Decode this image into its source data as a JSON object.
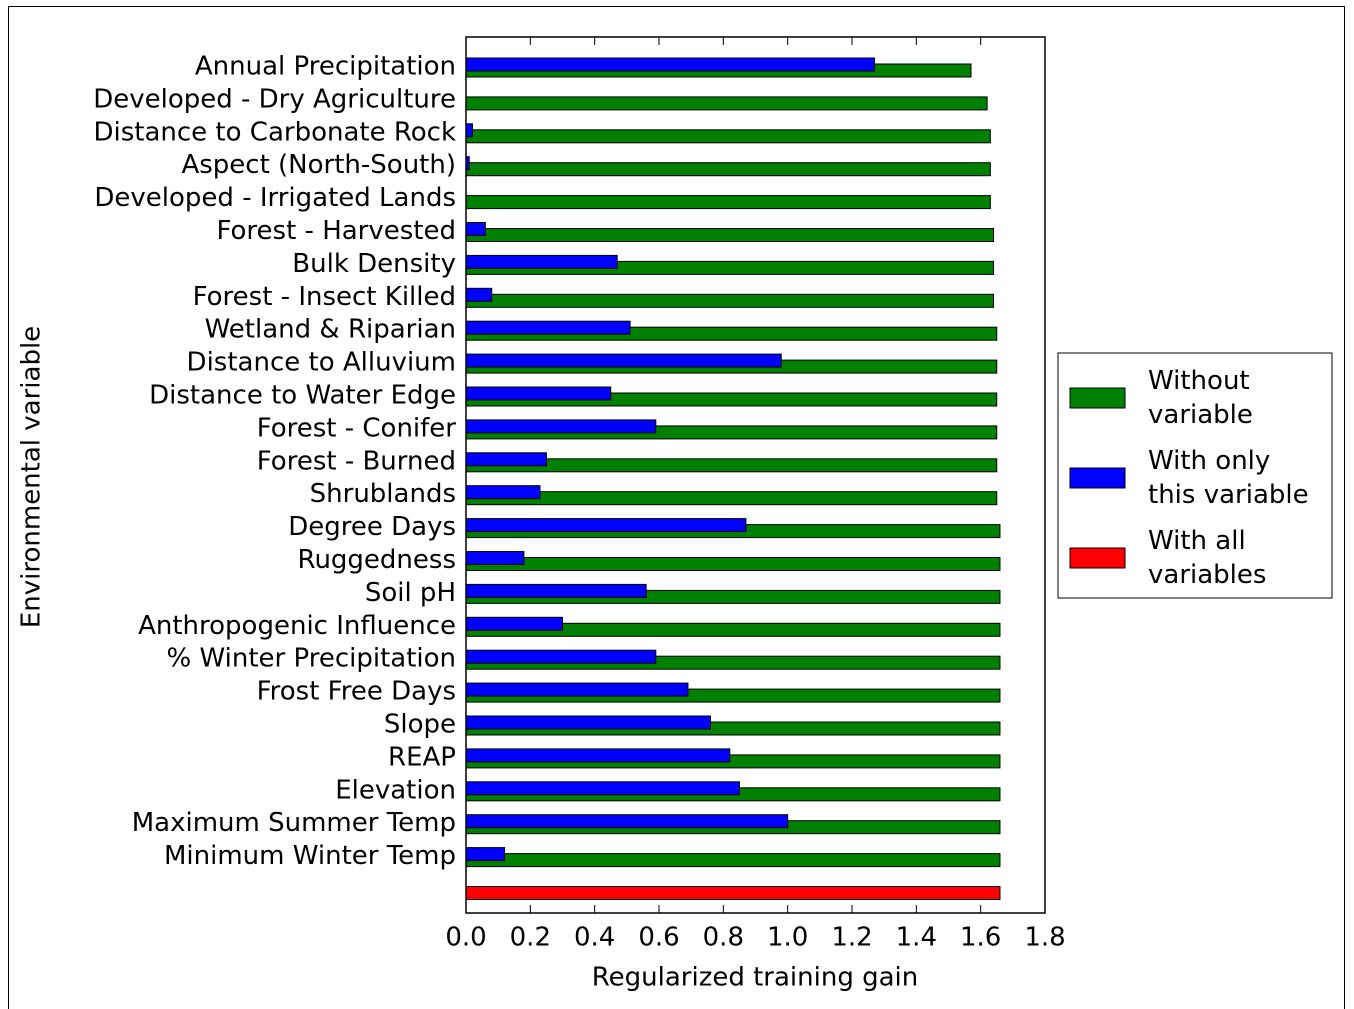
{
  "chart_data": {
    "type": "barh",
    "xlabel": "Regularized training gain",
    "ylabel": "Environmental variable",
    "categories": [
      "Annual Precipitation",
      "Developed - Dry Agriculture",
      "Distance to Carbonate Rock",
      "Aspect (North-South)",
      "Developed - Irrigated Lands",
      "Forest - Harvested",
      "Bulk Density",
      "Forest - Insect Killed",
      "Wetland & Riparian",
      "Distance to Alluvium",
      "Distance to Water Edge",
      "Forest - Conifer",
      "Forest - Burned",
      "Shrublands",
      "Degree Days",
      "Ruggedness",
      "Soil pH",
      "Anthropogenic Influence",
      "% Winter Precipitation",
      "Frost Free Days",
      "Slope",
      "REAP",
      "Elevation",
      "Maximum Summer Temp",
      "Minimum Winter Temp",
      null
    ],
    "series": [
      {
        "name": "Without variable",
        "color": "#008000",
        "values": [
          1.57,
          1.62,
          1.63,
          1.63,
          1.63,
          1.64,
          1.64,
          1.64,
          1.65,
          1.65,
          1.65,
          1.65,
          1.65,
          1.65,
          1.66,
          1.66,
          1.66,
          1.66,
          1.66,
          1.66,
          1.66,
          1.66,
          1.66,
          1.66,
          1.66,
          null
        ]
      },
      {
        "name": "With only this variable",
        "color": "#0000ff",
        "values": [
          1.27,
          0,
          0.02,
          0.01,
          0,
          0.06,
          0.47,
          0.08,
          0.51,
          0.98,
          0.45,
          0.59,
          0.25,
          0.23,
          0.87,
          0.18,
          0.56,
          0.3,
          0.59,
          0.69,
          0.76,
          0.82,
          0.85,
          1.0,
          0.12,
          null
        ]
      },
      {
        "name": "With all variables",
        "color": "#ff0000",
        "values": [
          null,
          null,
          null,
          null,
          null,
          null,
          null,
          null,
          null,
          null,
          null,
          null,
          null,
          null,
          null,
          null,
          null,
          null,
          null,
          null,
          null,
          null,
          null,
          null,
          null,
          1.66
        ]
      }
    ],
    "xlim": [
      0,
      1.8
    ],
    "xticks": [
      {
        "value": 0,
        "label": "0.0"
      },
      0.2,
      0.4,
      0.6,
      0.8,
      {
        "value": 1,
        "label": "1.0"
      },
      1.2,
      1.4,
      1.6,
      1.8
    ],
    "legend": "right"
  }
}
